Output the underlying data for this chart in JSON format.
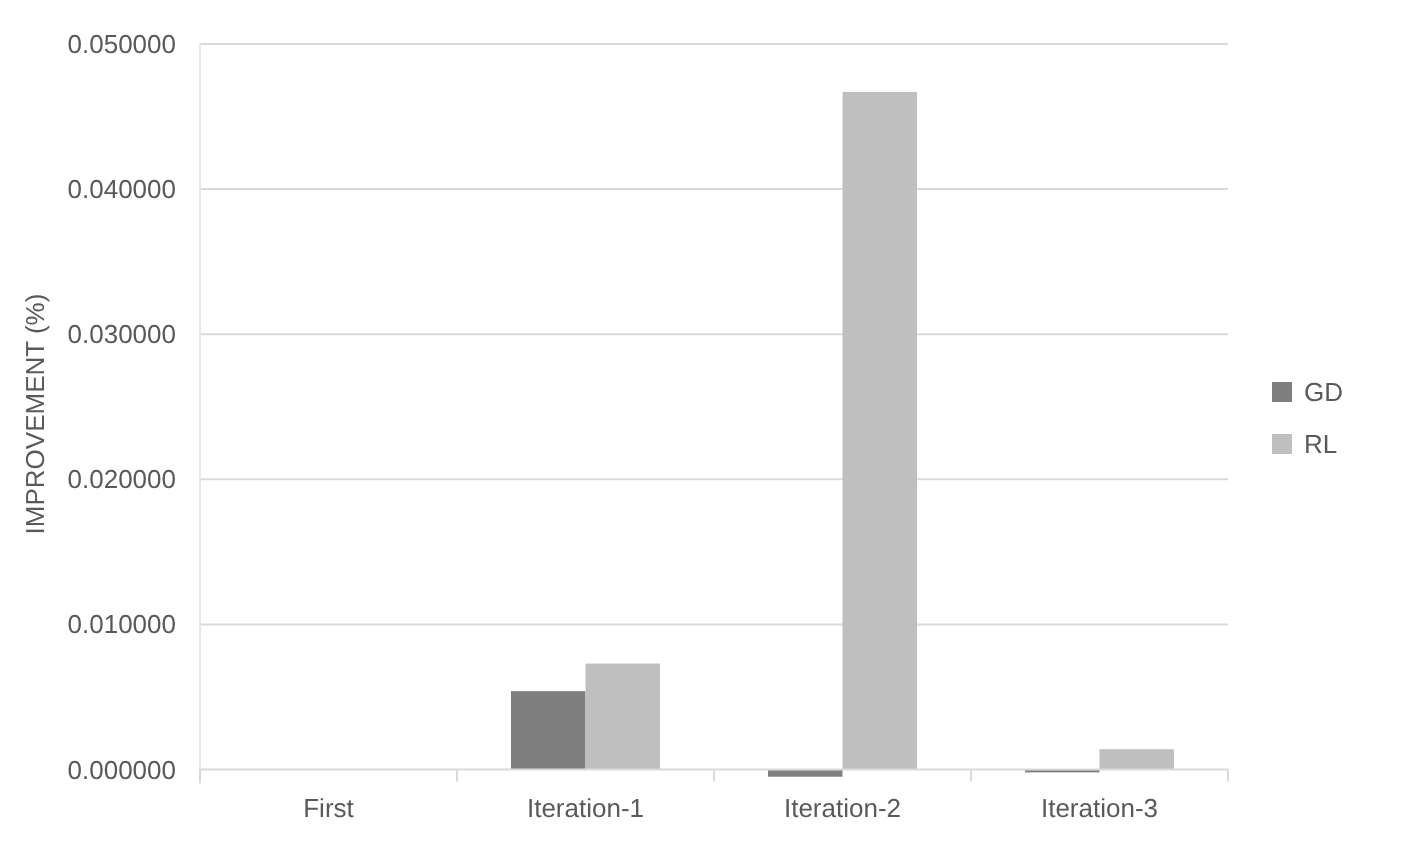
{
  "chart_data": {
    "type": "bar",
    "ylabel": "IMPROVEMENT (%)",
    "categories": [
      "First",
      "Iteration-1",
      "Iteration-2",
      "Iteration-3"
    ],
    "series": [
      {
        "name": "GD",
        "color": "#7f7f7f",
        "values": [
          0,
          0.0054,
          -0.0005,
          -0.0002
        ]
      },
      {
        "name": "RL",
        "color": "#bfbfbf",
        "values": [
          0,
          0.0073,
          0.0467,
          0.0014
        ]
      }
    ],
    "ylim": [
      -0.001,
      0.05
    ],
    "yticks": [
      {
        "value": 0,
        "label": "0.000000"
      },
      {
        "value": 0.01,
        "label": "0.010000"
      },
      {
        "value": 0.02,
        "label": "0.020000"
      },
      {
        "value": 0.03,
        "label": "0.030000"
      },
      {
        "value": 0.04,
        "label": "0.040000"
      },
      {
        "value": 0.05,
        "label": "0.050000"
      }
    ],
    "grid": "y",
    "legend": "right"
  }
}
